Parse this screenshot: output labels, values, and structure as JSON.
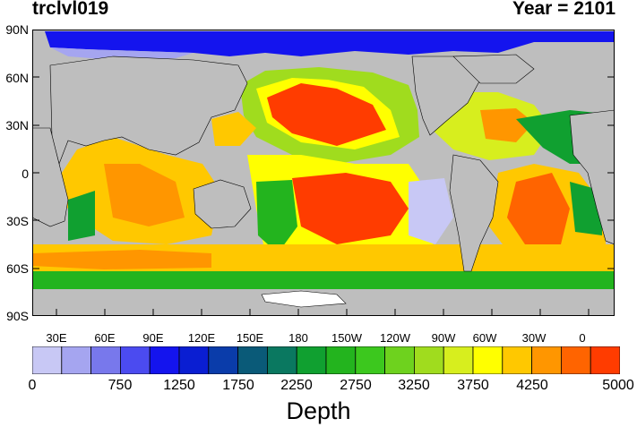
{
  "title_left": "trclvl019",
  "title_right": "Year = 2101",
  "lat_labels": [
    "90N",
    "60N",
    "30N",
    "0",
    "30S",
    "60S",
    "90S"
  ],
  "lon_labels": [
    "30E",
    "60E",
    "90E",
    "120E",
    "150E",
    "180",
    "150W",
    "120W",
    "90W",
    "60W",
    "30W",
    "0"
  ],
  "colorbar": {
    "colors": [
      "#c8c8f5",
      "#a5a5f0",
      "#7878ec",
      "#4b4bf0",
      "#1414ee",
      "#0a1ed2",
      "#0a3caa",
      "#0a5a78",
      "#0a7860",
      "#10a030",
      "#23b41e",
      "#3cc81e",
      "#6ed21e",
      "#a0dc1e",
      "#d7ee1e",
      "#ffff00",
      "#ffc800",
      "#ff9600",
      "#ff6400",
      "#ff3c00"
    ],
    "labels": [
      "0",
      "750",
      "1250",
      "1750",
      "2250",
      "2750",
      "3250",
      "3750",
      "4250",
      "5000"
    ],
    "title": "Depth"
  }
}
